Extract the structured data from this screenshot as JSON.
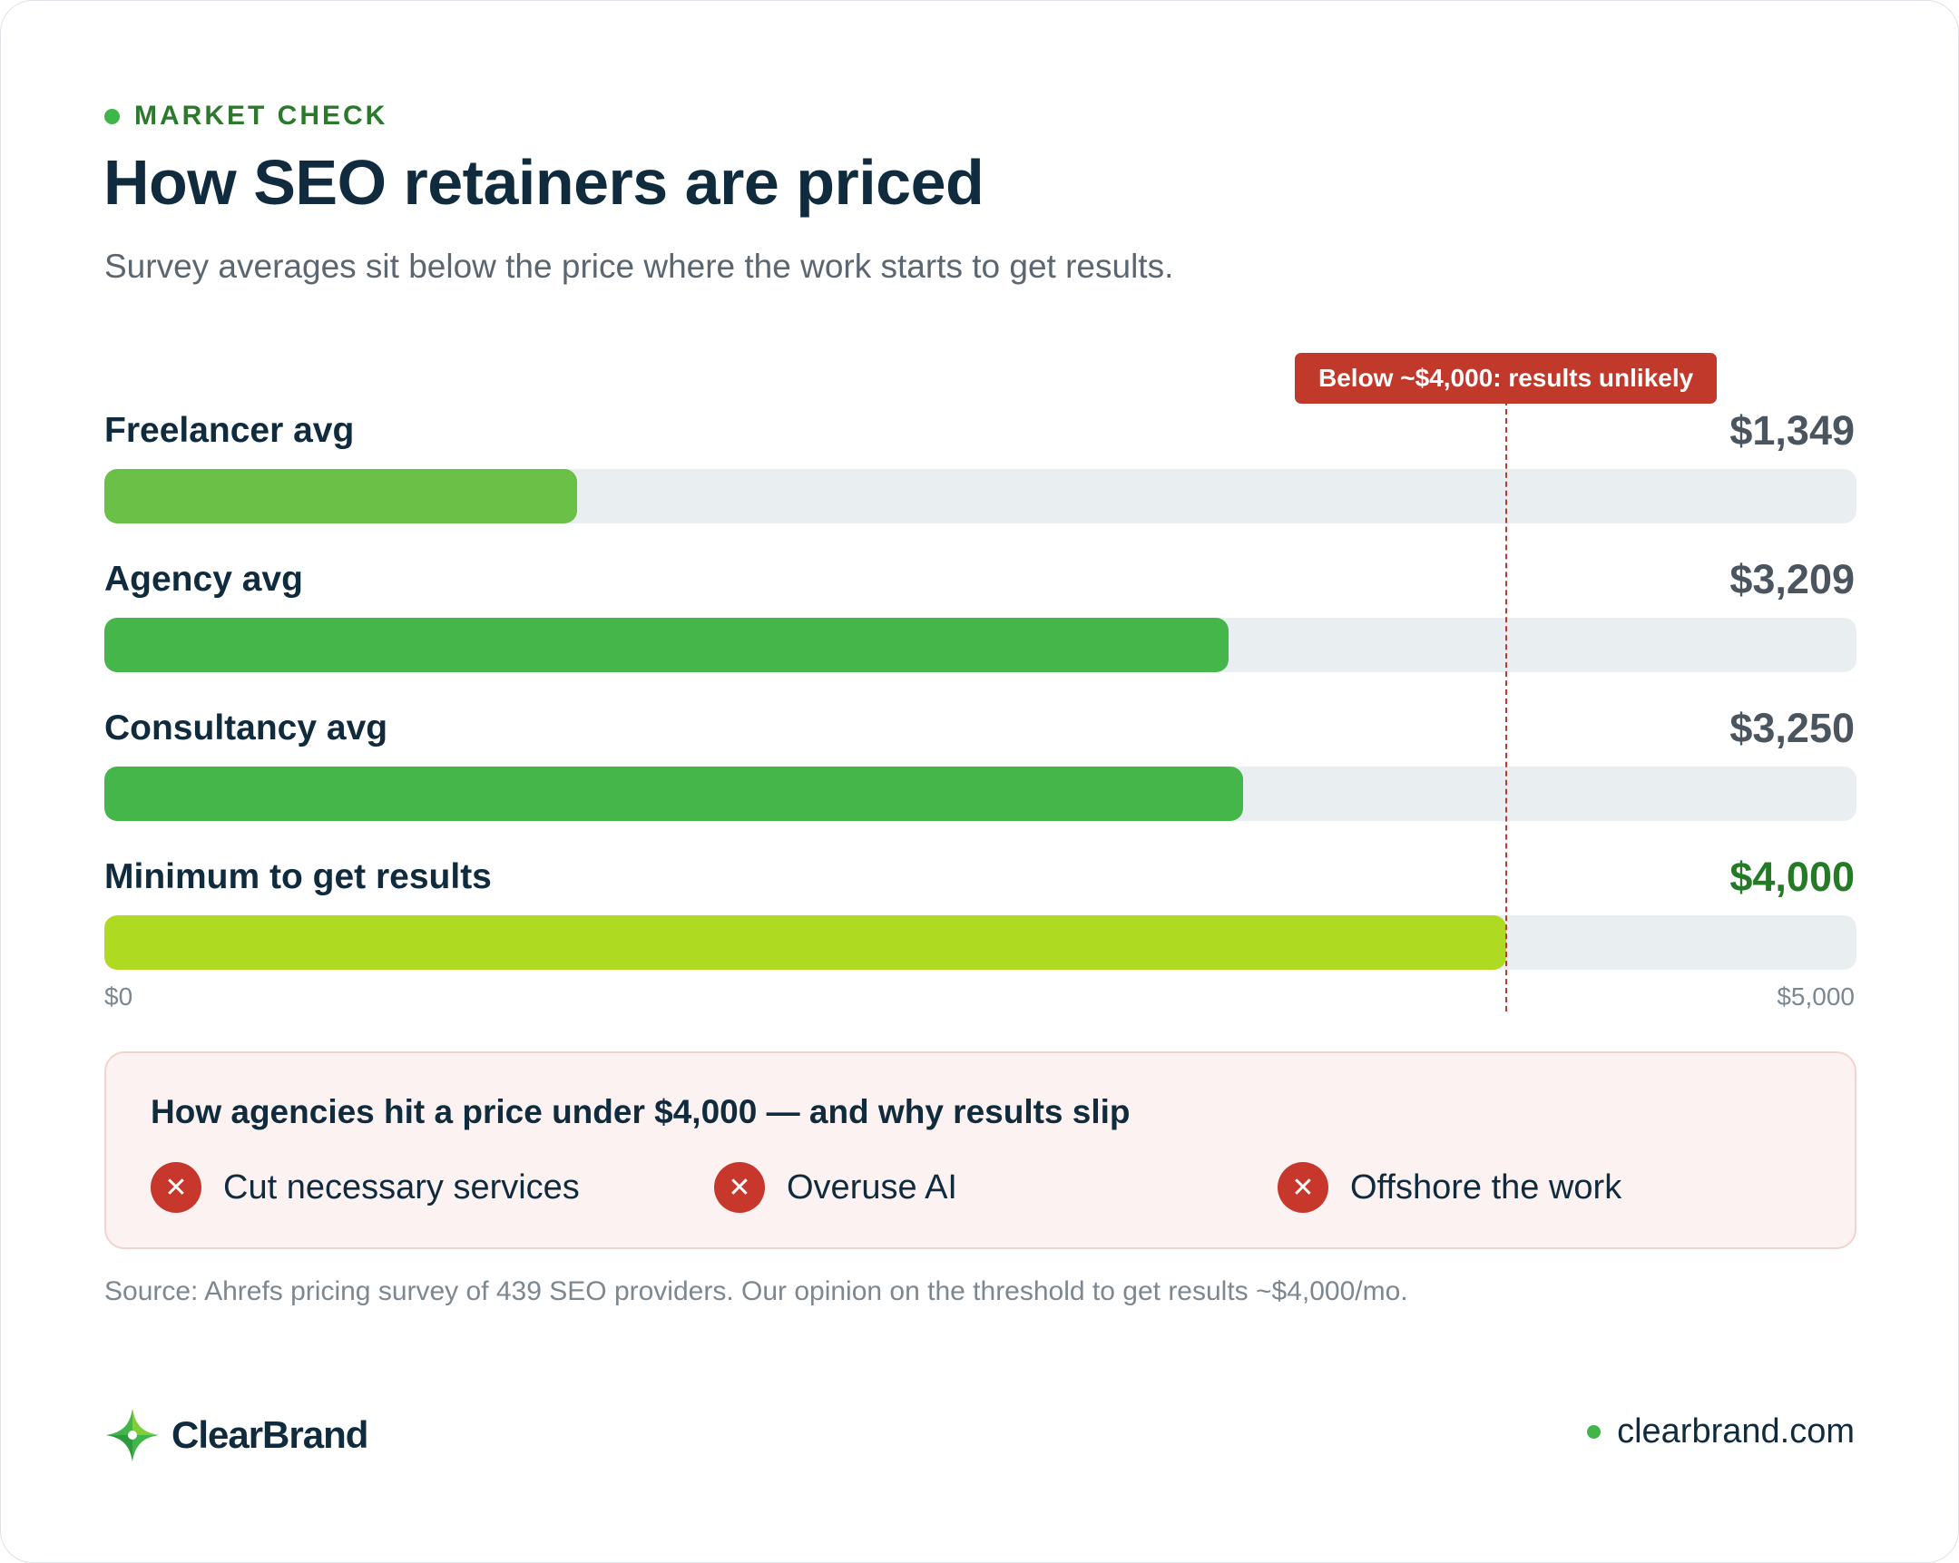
{
  "header": {
    "eyebrow": "MARKET CHECK",
    "title": "How SEO retainers are priced",
    "subtitle": "Survey averages sit below the price where the work starts to get results."
  },
  "chart_data": {
    "type": "bar",
    "orientation": "horizontal",
    "categories": [
      "Freelancer avg",
      "Agency avg",
      "Consultancy avg",
      "Minimum to get results"
    ],
    "values": [
      1349,
      3209,
      3250,
      4000
    ],
    "value_labels": [
      "$1,349",
      "$3,209",
      "$3,250",
      "$4,000"
    ],
    "bar_colors": [
      "#6bc048",
      "#45b649",
      "#45b649",
      "#aedb22"
    ],
    "xlim": [
      0,
      5000
    ],
    "axis_min_label": "$0",
    "axis_max_label": "$5,000",
    "threshold": {
      "value": 4000,
      "label": "Below ~$4,000: results unlikely",
      "color": "#c1392b"
    }
  },
  "callout": {
    "title": "How agencies hit a price under $4,000 — and why results slip",
    "items": [
      {
        "icon": "x-circle-icon",
        "label": "Cut necessary services"
      },
      {
        "icon": "x-circle-icon",
        "label": "Overuse AI"
      },
      {
        "icon": "x-circle-icon",
        "label": "Offshore the work"
      }
    ]
  },
  "source": "Source: Ahrefs pricing survey of 439 SEO providers. Our opinion on the threshold to get results ~$4,000/mo.",
  "footer": {
    "brand": "ClearBrand",
    "site": "clearbrand.com"
  },
  "colors": {
    "accent": "#3fb54a",
    "ink": "#0f2b3d",
    "warning": "#c1392b",
    "track": "#e9eef1"
  }
}
